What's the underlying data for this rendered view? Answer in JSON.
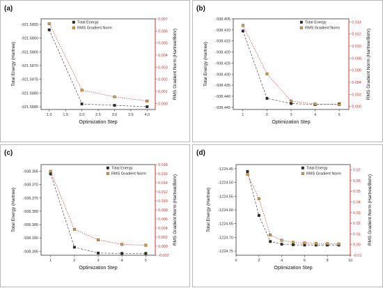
{
  "chart_data": [
    {
      "type": "line",
      "panel_label": "(a)",
      "xlabel": "Optimization Step",
      "ylabel": "Total Energy (Hartree)",
      "y2label": "RMS Gradient Norm (Hartree/Bohr)",
      "x": [
        1,
        2,
        3,
        4
      ],
      "xticks": [
        "1.0",
        "1.5",
        "2.0",
        "2.5",
        "3.0",
        "3.5",
        "4.0"
      ],
      "xlim": [
        0.75,
        4.25
      ],
      "ylim": [
        -921.5886,
        -921.5853
      ],
      "yticks": [
        "-921.5855",
        "-921.5860",
        "-921.5865",
        "-921.5870",
        "-921.5875",
        "-921.5880",
        "-921.5885"
      ],
      "y2lim": [
        -0.0005,
        0.007
      ],
      "y2ticks": [
        "0.000",
        "0.001",
        "0.002",
        "0.003",
        "0.004",
        "0.005",
        "0.006",
        "0.007"
      ],
      "legend_position": "top-center",
      "series": [
        {
          "name": "Total Energy",
          "axis": "left",
          "marker": "square",
          "color": "#2a2a2a",
          "values": [
            -921.5857,
            -921.5884,
            -921.58845,
            -921.5885
          ]
        },
        {
          "name": "RMS Gradient Norm",
          "axis": "right",
          "marker": "square",
          "color": "#d89a3c",
          "values": [
            0.0066,
            0.0011,
            0.00055,
            0.0002
          ]
        }
      ]
    },
    {
      "type": "line",
      "panel_label": "(b)",
      "xlabel": "Optimization Step",
      "ylabel": "Total Energy (Hartree)",
      "y2label": "RMS Gradient Norm (Hartree/Bohr)",
      "x": [
        1,
        2,
        3,
        4,
        5
      ],
      "xticks": [
        "1",
        "2",
        "3",
        "4",
        "5"
      ],
      "xlim": [
        0.6,
        5.4
      ],
      "ylim": [
        -938.446,
        -938.405
      ],
      "yticks": [
        "-938.405",
        "-938.410",
        "-938.415",
        "-938.420",
        "-938.425",
        "-938.430",
        "-938.435",
        "-938.440",
        "-938.445"
      ],
      "y2lim": [
        -0.0005,
        0.0145
      ],
      "y2ticks": [
        "0.000",
        "0.002",
        "0.004",
        "0.006",
        "0.008",
        "0.010",
        "0.012",
        "0.014"
      ],
      "legend_position": "top-right",
      "series": [
        {
          "name": "Total Energy",
          "axis": "left",
          "marker": "square",
          "color": "#2a2a2a",
          "values": [
            -938.4105,
            -938.441,
            -938.4433,
            -938.4438,
            -938.4435
          ]
        },
        {
          "name": "RMS Gradient Norm",
          "axis": "right",
          "marker": "square",
          "color": "#d89a3c",
          "values": [
            0.0134,
            0.0054,
            0.0009,
            0.0004,
            0.0003
          ]
        }
      ]
    },
    {
      "type": "line",
      "panel_label": "(c)",
      "xlabel": "Optimization Step",
      "ylabel": "Total Energy (Hartree)",
      "y2label": "RMS Gradient Norm (Hartree/Bohr)",
      "x": [
        1,
        2,
        3,
        4,
        5
      ],
      "xticks": [
        "1",
        "2",
        "3",
        "4",
        "5"
      ],
      "xlim": [
        0.6,
        5.4
      ],
      "ylim": [
        -938.3965,
        -938.3625
      ],
      "yticks": [
        "-938.365",
        "-938.370",
        "-938.375",
        "-938.380",
        "-938.385",
        "-938.390",
        "-938.395"
      ],
      "y2lim": [
        -0.002,
        0.018
      ],
      "y2ticks": [
        "-0.002",
        "0.000",
        "0.002",
        "0.004",
        "0.006",
        "0.008",
        "0.010",
        "0.012",
        "0.014",
        "0.016",
        "0.018"
      ],
      "legend_position": "top-right",
      "series": [
        {
          "name": "Total Energy",
          "axis": "left",
          "marker": "square",
          "color": "#2a2a2a",
          "values": [
            -938.366,
            -938.3935,
            -938.3957,
            -938.3958,
            -938.3958
          ]
        },
        {
          "name": "RMS Gradient Norm",
          "axis": "right",
          "marker": "square",
          "color": "#d89a3c",
          "values": [
            0.0165,
            0.0037,
            0.0014,
            0.0004,
            0.0002
          ]
        }
      ]
    },
    {
      "type": "line",
      "panel_label": "(d)",
      "xlabel": "Optimization Step",
      "ylabel": "Total Energy (Hartree)",
      "y2label": "RMS Gradient Norm (Hartree/Bohr)",
      "x": [
        1,
        2,
        3,
        4,
        5,
        6,
        7,
        8,
        9
      ],
      "xticks": [
        "0",
        "2",
        "4",
        "6",
        "8",
        "10"
      ],
      "xlim": [
        0,
        10
      ],
      "ylim": [
        -1224.765,
        -1224.435
      ],
      "yticks": [
        "-1224.45",
        "-1224.50",
        "-1224.55",
        "-1224.60",
        "-1224.65",
        "-1224.70",
        "-1224.75"
      ],
      "y2lim": [
        -0.01,
        0.075
      ],
      "y2ticks": [
        "-0.01",
        "0.00",
        "0.01",
        "0.02",
        "0.03",
        "0.04",
        "0.05",
        "0.06",
        "0.07"
      ],
      "legend_position": "top-right",
      "series": [
        {
          "name": "Total Energy",
          "axis": "left",
          "marker": "square",
          "color": "#2a2a2a",
          "values": [
            -1224.46,
            -1224.62,
            -1224.715,
            -1224.725,
            -1224.727,
            -1224.728,
            -1224.728,
            -1224.728,
            -1224.728
          ]
        },
        {
          "name": "RMS Gradient Norm",
          "axis": "right",
          "marker": "square",
          "color": "#d89a3c",
          "values": [
            0.066,
            0.043,
            0.009,
            0.004,
            0.002,
            0.0015,
            0.001,
            0.0008,
            0.0006
          ]
        }
      ]
    }
  ]
}
